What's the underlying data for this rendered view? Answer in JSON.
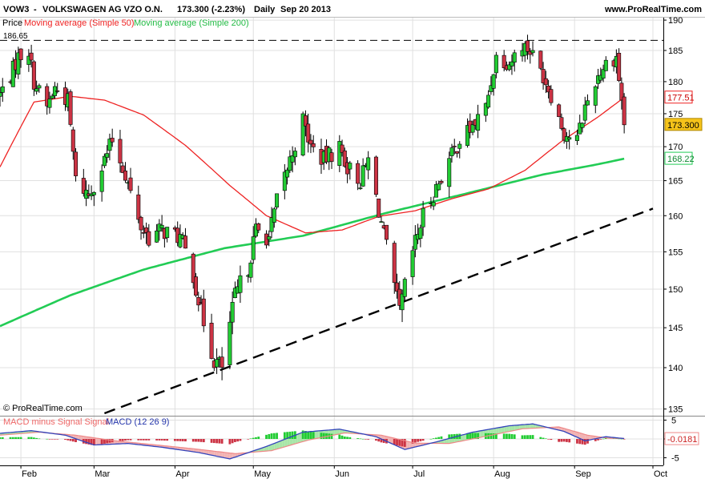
{
  "header": {
    "symbol": "VOW3",
    "name": "VOLKSWAGEN AG VZO O.N.",
    "price_change": "173.300 (-2.23%)",
    "period": "Daily",
    "date": "Sep 20 2013",
    "site": "www.ProRealTime.com"
  },
  "legend": {
    "price_label": "Price",
    "ma50_label": "Moving average (Simple 50)",
    "ma200_label": "Moving average (Simple 200)",
    "macd_label_a": "MACD minus Signal Signal",
    "macd_label_b": "MACD (12 26 9)"
  },
  "copyright": "© ProRealTime.com",
  "colors": {
    "up": "#22cc33",
    "down": "#cc3344",
    "ma50": "#ee2222",
    "ma200": "#22cc55",
    "macd_line": "#3344bb",
    "signal_line": "#ee8888",
    "grid": "#e0e0e0",
    "axis": "#000000",
    "badge_close_bg": "#f5c31a",
    "badge_ma50_border": "#ee2222",
    "badge_ma200_border": "#22cc55"
  },
  "chart_data": {
    "type": "candlestick",
    "y_axis": {
      "range": [
        135,
        190
      ],
      "ticks": [
        135,
        140,
        145,
        150,
        155,
        160,
        165,
        170,
        175,
        180,
        185,
        190
      ],
      "log_scale": true
    },
    "x_axis": {
      "range": [
        "2013-01-24",
        "2013-10-01"
      ],
      "tick_labels": [
        "Feb",
        "Mar",
        "Apr",
        "May",
        "Jun",
        "Jul",
        "Aug",
        "Sep",
        "Oct"
      ],
      "tick_dates": [
        "2013-02-01",
        "2013-03-01",
        "2013-04-01",
        "2013-05-01",
        "2013-06-01",
        "2013-07-01",
        "2013-08-01",
        "2013-09-01",
        "2013-10-01"
      ]
    },
    "resistance_line": {
      "value": 186.65,
      "label": "186.65"
    },
    "trendline": {
      "points": [
        [
          "2013-03-05",
          134.5
        ],
        [
          "2013-10-01",
          161.0
        ]
      ]
    },
    "badges": [
      {
        "label": "177.51",
        "value": 177.51,
        "kind": "ma50"
      },
      {
        "label": "173.300",
        "value": 173.3,
        "kind": "close"
      },
      {
        "label": "168.22",
        "value": 168.22,
        "kind": "ma200"
      }
    ],
    "close_points": [
      [
        "2013-01-24",
        178
      ],
      [
        "2013-01-28",
        181
      ],
      [
        "2013-01-31",
        184
      ],
      [
        "2013-02-04",
        185
      ],
      [
        "2013-02-06",
        180
      ],
      [
        "2013-02-11",
        176
      ],
      [
        "2013-02-14",
        179
      ],
      [
        "2013-02-19",
        177
      ],
      [
        "2013-02-22",
        165
      ],
      [
        "2013-02-27",
        163
      ],
      [
        "2013-03-04",
        167
      ],
      [
        "2013-03-08",
        171
      ],
      [
        "2013-03-13",
        166
      ],
      [
        "2013-03-18",
        159
      ],
      [
        "2013-03-22",
        157
      ],
      [
        "2013-03-27",
        158
      ],
      [
        "2013-04-03",
        157
      ],
      [
        "2013-04-08",
        152
      ],
      [
        "2013-04-11",
        147
      ],
      [
        "2013-04-16",
        141
      ],
      [
        "2013-04-19",
        140
      ],
      [
        "2013-04-24",
        149
      ],
      [
        "2013-04-29",
        153
      ],
      [
        "2013-05-02",
        158
      ],
      [
        "2013-05-07",
        157
      ],
      [
        "2013-05-10",
        162
      ],
      [
        "2013-05-15",
        168
      ],
      [
        "2013-05-20",
        174
      ],
      [
        "2013-05-23",
        170
      ],
      [
        "2013-05-28",
        168
      ],
      [
        "2013-06-03",
        170
      ],
      [
        "2013-06-06",
        167
      ],
      [
        "2013-06-11",
        165
      ],
      [
        "2013-06-14",
        168
      ],
      [
        "2013-06-19",
        159
      ],
      [
        "2013-06-24",
        150
      ],
      [
        "2013-06-26",
        147
      ],
      [
        "2013-07-01",
        155
      ],
      [
        "2013-07-05",
        160
      ],
      [
        "2013-07-10",
        164
      ],
      [
        "2013-07-15",
        168
      ],
      [
        "2013-07-19",
        171
      ],
      [
        "2013-07-24",
        173
      ],
      [
        "2013-07-29",
        176
      ],
      [
        "2013-08-02",
        184
      ],
      [
        "2013-08-07",
        183
      ],
      [
        "2013-08-12",
        186
      ],
      [
        "2013-08-15",
        185
      ],
      [
        "2013-08-20",
        181
      ],
      [
        "2013-08-23",
        178
      ],
      [
        "2013-08-28",
        172
      ],
      [
        "2013-09-02",
        171
      ],
      [
        "2013-09-05",
        176
      ],
      [
        "2013-09-10",
        181
      ],
      [
        "2013-09-13",
        183
      ],
      [
        "2013-09-17",
        184
      ],
      [
        "2013-09-20",
        173.3
      ]
    ],
    "ma50_points": [
      [
        "2013-01-24",
        167
      ],
      [
        "2013-02-06",
        176.8
      ],
      [
        "2013-02-20",
        177.7
      ],
      [
        "2013-03-05",
        177.1
      ],
      [
        "2013-03-20",
        174.8
      ],
      [
        "2013-04-05",
        170.2
      ],
      [
        "2013-04-22",
        164.3
      ],
      [
        "2013-05-06",
        160.0
      ],
      [
        "2013-05-21",
        157.6
      ],
      [
        "2013-06-04",
        158.0
      ],
      [
        "2013-06-18",
        159.9
      ],
      [
        "2013-07-02",
        160.7
      ],
      [
        "2013-07-16",
        162.4
      ],
      [
        "2013-07-30",
        163.8
      ],
      [
        "2013-08-13",
        166.5
      ],
      [
        "2013-08-27",
        170.8
      ],
      [
        "2013-09-10",
        174.5
      ],
      [
        "2013-09-20",
        177.51
      ]
    ],
    "ma200_points": [
      [
        "2013-01-24",
        145.2
      ],
      [
        "2013-02-20",
        149.2
      ],
      [
        "2013-03-20",
        152.6
      ],
      [
        "2013-04-20",
        155.5
      ],
      [
        "2013-05-20",
        157.2
      ],
      [
        "2013-06-20",
        160.3
      ],
      [
        "2013-07-20",
        163.0
      ],
      [
        "2013-08-20",
        165.9
      ],
      [
        "2013-09-10",
        167.4
      ],
      [
        "2013-09-20",
        168.22
      ]
    ],
    "macd": {
      "y_ticks": [
        -5,
        0,
        5
      ],
      "y_range": [
        -6,
        6
      ],
      "badge": {
        "label": "-0.0181",
        "value": -0.0181
      },
      "macd_points": [
        [
          "2013-01-24",
          1.5
        ],
        [
          "2013-02-05",
          2.2
        ],
        [
          "2013-02-18",
          1.0
        ],
        [
          "2013-03-01",
          -1.6
        ],
        [
          "2013-03-14",
          -1.2
        ],
        [
          "2013-03-27",
          -2.2
        ],
        [
          "2013-04-10",
          -3.6
        ],
        [
          "2013-04-22",
          -5.3
        ],
        [
          "2013-05-06",
          -2.0
        ],
        [
          "2013-05-20",
          1.8
        ],
        [
          "2013-06-03",
          2.6
        ],
        [
          "2013-06-17",
          0.6
        ],
        [
          "2013-06-28",
          -2.8
        ],
        [
          "2013-07-10",
          -0.8
        ],
        [
          "2013-07-24",
          1.8
        ],
        [
          "2013-08-07",
          3.5
        ],
        [
          "2013-08-16",
          4.0
        ],
        [
          "2013-08-28",
          2.0
        ],
        [
          "2013-09-05",
          -0.5
        ],
        [
          "2013-09-13",
          0.6
        ],
        [
          "2013-09-20",
          0.1
        ]
      ],
      "signal_points": [
        [
          "2013-01-24",
          1.0
        ],
        [
          "2013-02-08",
          1.8
        ],
        [
          "2013-02-22",
          1.0
        ],
        [
          "2013-03-08",
          -0.4
        ],
        [
          "2013-03-22",
          -1.4
        ],
        [
          "2013-04-08",
          -2.6
        ],
        [
          "2013-04-24",
          -3.9
        ],
        [
          "2013-05-08",
          -3.1
        ],
        [
          "2013-05-22",
          -0.3
        ],
        [
          "2013-06-05",
          1.6
        ],
        [
          "2013-06-19",
          1.0
        ],
        [
          "2013-07-02",
          -1.1
        ],
        [
          "2013-07-15",
          -1.2
        ],
        [
          "2013-07-29",
          0.7
        ],
        [
          "2013-08-12",
          2.7
        ],
        [
          "2013-08-26",
          3.2
        ],
        [
          "2013-09-06",
          1.0
        ],
        [
          "2013-09-14",
          0.2
        ],
        [
          "2013-09-20",
          0.12
        ]
      ]
    }
  }
}
